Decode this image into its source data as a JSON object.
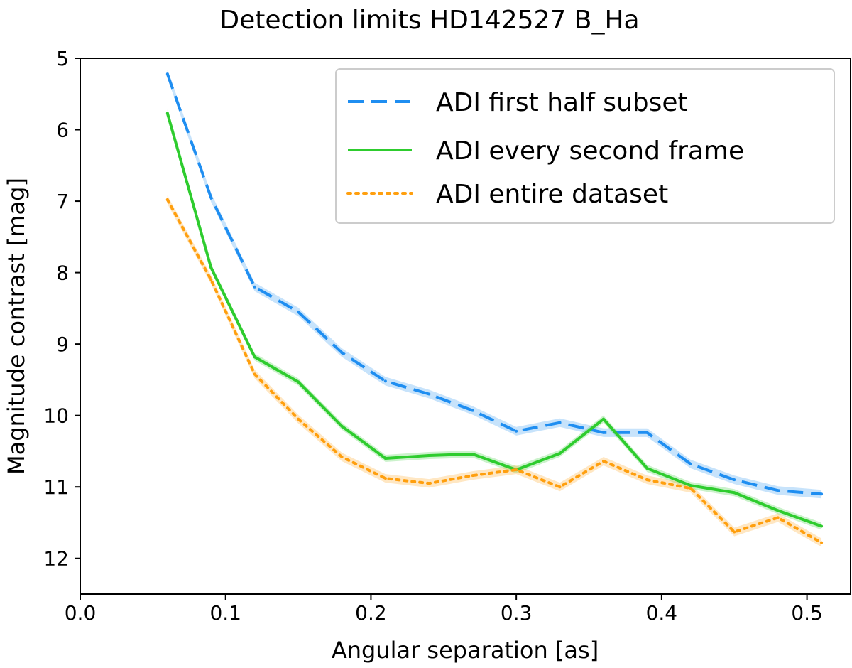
{
  "chart_data": {
    "type": "line",
    "title": "Detection limits HD142527 B_Ha",
    "xlabel": "Angular separation [as]",
    "ylabel": "Magnitude contrast [mag]",
    "xlim": [
      0.0,
      0.53
    ],
    "ylim": [
      12.5,
      5.0
    ],
    "y_inverted": true,
    "grid": false,
    "legend_position": "top-right",
    "xticks": [
      "0.0",
      "0.1",
      "0.2",
      "0.3",
      "0.4",
      "0.5"
    ],
    "yticks": [
      "5",
      "6",
      "7",
      "8",
      "9",
      "10",
      "11",
      "12"
    ],
    "x": [
      0.06,
      0.09,
      0.12,
      0.15,
      0.18,
      0.21,
      0.24,
      0.27,
      0.3,
      0.33,
      0.36,
      0.39,
      0.42,
      0.45,
      0.48,
      0.51
    ],
    "series": [
      {
        "name": "ADI first half subset",
        "color": "#1f8ef1",
        "style": "dashed",
        "values": [
          5.22,
          6.95,
          8.2,
          8.55,
          9.12,
          9.52,
          9.7,
          9.93,
          10.22,
          10.1,
          10.24,
          10.24,
          10.68,
          10.9,
          11.05,
          11.1
        ],
        "band": 0.06
      },
      {
        "name": "ADI every second frame",
        "color": "#2ecc2e",
        "style": "solid",
        "values": [
          5.77,
          7.93,
          9.18,
          9.53,
          10.15,
          10.6,
          10.56,
          10.54,
          10.76,
          10.53,
          10.05,
          10.74,
          10.98,
          11.08,
          11.33,
          11.55
        ],
        "band": 0.05
      },
      {
        "name": "ADI entire dataset",
        "color": "#ff9f0e",
        "style": "dotted",
        "values": [
          6.98,
          8.1,
          9.42,
          10.05,
          10.58,
          10.88,
          10.95,
          10.84,
          10.76,
          11.0,
          10.64,
          10.9,
          11.02,
          11.63,
          11.43,
          11.78
        ],
        "band": 0.06
      }
    ]
  }
}
